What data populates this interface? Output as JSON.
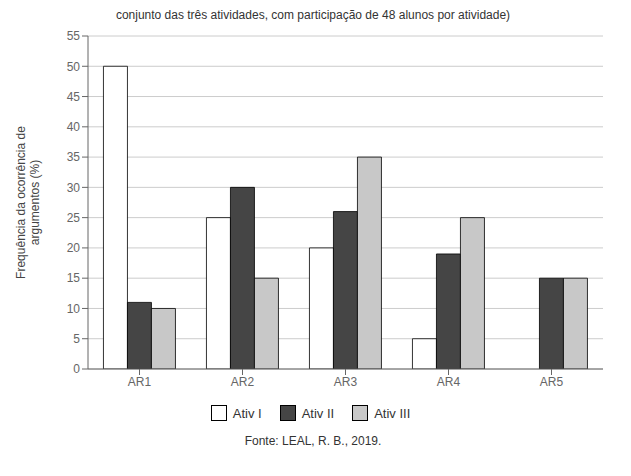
{
  "chart_data": {
    "type": "bar",
    "title": "conjunto das três atividades, com participação de 48 alunos por atividade)",
    "annotations": [
      "Fonte: LEAL, R. B., 2019."
    ],
    "ylabel": "Frequência da ocorrência de\nargumentos (%)",
    "categories": [
      "AR1",
      "AR2",
      "AR3",
      "AR4",
      "AR5"
    ],
    "series": [
      {
        "name": "Ativ I",
        "color": "#ffffff",
        "values": [
          50,
          25,
          20,
          5,
          0
        ]
      },
      {
        "name": "Ativ II",
        "color": "#454545",
        "values": [
          11,
          30,
          26,
          19,
          15
        ]
      },
      {
        "name": "Ativ III",
        "color": "#c8c8c8",
        "values": [
          10,
          15,
          35,
          25,
          15
        ]
      }
    ],
    "ylim": [
      0,
      55
    ],
    "yticks": [
      0,
      5,
      10,
      15,
      20,
      25,
      30,
      35,
      40,
      45,
      50,
      55
    ],
    "grid": true,
    "legend": "bottom"
  }
}
